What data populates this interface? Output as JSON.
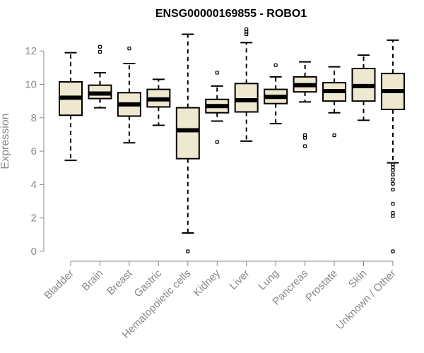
{
  "chart_data": {
    "type": "box",
    "title": "ENSG00000169855 - ROBO1",
    "ylabel": "Expression",
    "xlabel": "",
    "ylim": [
      0,
      13
    ],
    "yticks": [
      0,
      2,
      4,
      6,
      8,
      10,
      12
    ],
    "ytick_labels": [
      "0",
      "2",
      "4",
      "6",
      "8",
      "10",
      "12"
    ],
    "box_fill": "#efe8d0",
    "box_stroke": "#000000",
    "axis_color": "#888888",
    "categories": [
      "Bladder",
      "Brain",
      "Breast",
      "Gastric",
      "Hematopoietic cells",
      "Kidney",
      "Liver",
      "Lung",
      "Pancreas",
      "Prostate",
      "Skin",
      "Unknown / Other"
    ],
    "boxes": [
      {
        "min": 5.45,
        "q1": 8.15,
        "median": 9.2,
        "q3": 10.15,
        "max": 11.9,
        "outliers": []
      },
      {
        "min": 8.6,
        "q1": 9.15,
        "median": 9.45,
        "q3": 9.95,
        "max": 10.7,
        "outliers": [
          11.95,
          12.25
        ]
      },
      {
        "min": 6.5,
        "q1": 8.1,
        "median": 8.8,
        "q3": 9.5,
        "max": 11.25,
        "outliers": [
          12.15
        ]
      },
      {
        "min": 7.55,
        "q1": 8.65,
        "median": 9.1,
        "q3": 9.7,
        "max": 10.3,
        "outliers": []
      },
      {
        "min": 1.1,
        "q1": 5.55,
        "median": 7.25,
        "q3": 8.6,
        "max": 13.0,
        "outliers": [
          0.0
        ]
      },
      {
        "min": 7.8,
        "q1": 8.3,
        "median": 8.7,
        "q3": 9.1,
        "max": 9.9,
        "outliers": [
          6.55,
          10.7
        ]
      },
      {
        "min": 6.6,
        "q1": 8.35,
        "median": 9.05,
        "q3": 10.05,
        "max": 12.5,
        "outliers": [
          13.0,
          13.15,
          13.3
        ]
      },
      {
        "min": 7.65,
        "q1": 8.85,
        "median": 9.25,
        "q3": 9.7,
        "max": 10.45,
        "outliers": [
          11.15
        ]
      },
      {
        "min": 8.95,
        "q1": 9.55,
        "median": 9.95,
        "q3": 10.45,
        "max": 11.35,
        "outliers": [
          6.3,
          6.8,
          6.95
        ]
      },
      {
        "min": 8.3,
        "q1": 9.0,
        "median": 9.6,
        "q3": 10.1,
        "max": 11.05,
        "outliers": [
          6.95
        ]
      },
      {
        "min": 7.85,
        "q1": 9.0,
        "median": 9.9,
        "q3": 10.95,
        "max": 11.75,
        "outliers": []
      },
      {
        "min": 5.3,
        "q1": 8.5,
        "median": 9.6,
        "q3": 10.65,
        "max": 12.65,
        "outliers": [
          0.0,
          2.1,
          2.3,
          2.85,
          3.7,
          4.05,
          4.3,
          4.6,
          4.85,
          5.05,
          5.2
        ]
      }
    ]
  }
}
